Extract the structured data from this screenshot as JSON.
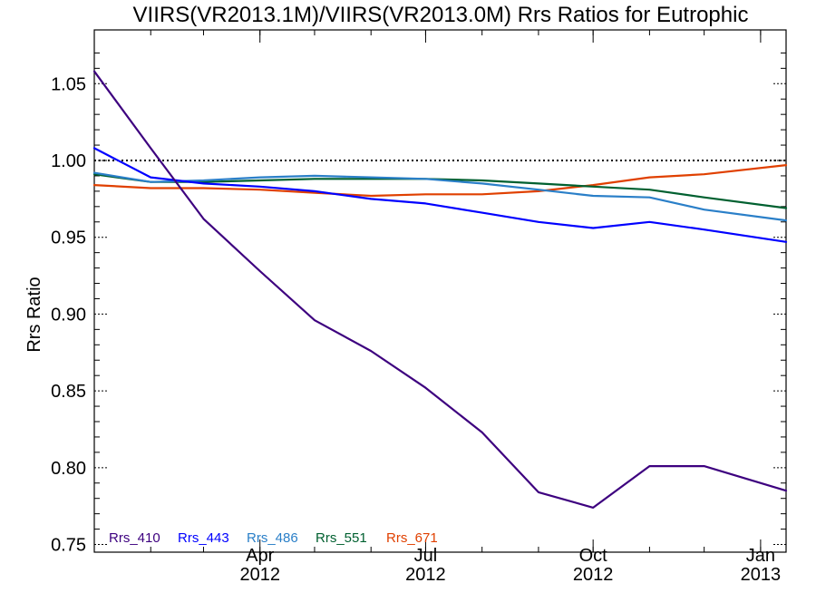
{
  "chart_data": {
    "type": "line",
    "title": "VIIRS(VR2013.1M)/VIIRS(VR2013.0M)  Rrs Ratios for Eutrophic",
    "xlabel": "",
    "ylabel": "Rrs Ratio",
    "xlim": [
      "2012-01-01",
      "2013-01-15"
    ],
    "ylim": [
      0.745,
      1.085
    ],
    "yticks": [
      0.75,
      0.8,
      0.85,
      0.9,
      0.95,
      1.0,
      1.05
    ],
    "ytick_labels": [
      "0.75",
      "0.80",
      "0.85",
      "0.90",
      "0.95",
      "1.00",
      "1.05"
    ],
    "xticks": [
      {
        "date": "2012-04-01",
        "month": "Apr",
        "year": "2012"
      },
      {
        "date": "2012-07-01",
        "month": "Jul",
        "year": "2012"
      },
      {
        "date": "2012-10-01",
        "month": "Oct",
        "year": "2012"
      },
      {
        "date": "2013-01-01",
        "month": "Jan",
        "year": "2013"
      }
    ],
    "reference_line": 1.0,
    "legend_position": "bottom-left",
    "x": [
      "2012-01-01",
      "2012-02-01",
      "2012-03-01",
      "2012-04-01",
      "2012-05-01",
      "2012-06-01",
      "2012-07-01",
      "2012-08-01",
      "2012-09-01",
      "2012-10-01",
      "2012-11-01",
      "2012-12-01",
      "2013-01-15"
    ],
    "series": [
      {
        "name": "Rrs_410",
        "color": "#3d007f",
        "values": [
          1.058,
          1.008,
          0.962,
          0.928,
          0.896,
          0.876,
          0.852,
          0.823,
          0.784,
          0.774,
          0.801,
          0.801,
          0.785
        ]
      },
      {
        "name": "Rrs_443",
        "color": "#0000ff",
        "values": [
          1.008,
          0.989,
          0.985,
          0.983,
          0.98,
          0.975,
          0.972,
          0.966,
          0.96,
          0.956,
          0.96,
          0.955,
          0.947
        ]
      },
      {
        "name": "Rrs_486",
        "color": "#2a7fc8",
        "values": [
          0.992,
          0.986,
          0.987,
          0.989,
          0.99,
          0.989,
          0.988,
          0.985,
          0.981,
          0.977,
          0.976,
          0.968,
          0.961
        ]
      },
      {
        "name": "Rrs_551",
        "color": "#006030",
        "values": [
          0.991,
          0.986,
          0.986,
          0.987,
          0.988,
          0.988,
          0.988,
          0.987,
          0.985,
          0.983,
          0.981,
          0.976,
          0.969
        ]
      },
      {
        "name": "Rrs_671",
        "color": "#e04000",
        "values": [
          0.984,
          0.982,
          0.982,
          0.981,
          0.979,
          0.977,
          0.978,
          0.978,
          0.98,
          0.984,
          0.989,
          0.991,
          0.997
        ]
      }
    ]
  }
}
